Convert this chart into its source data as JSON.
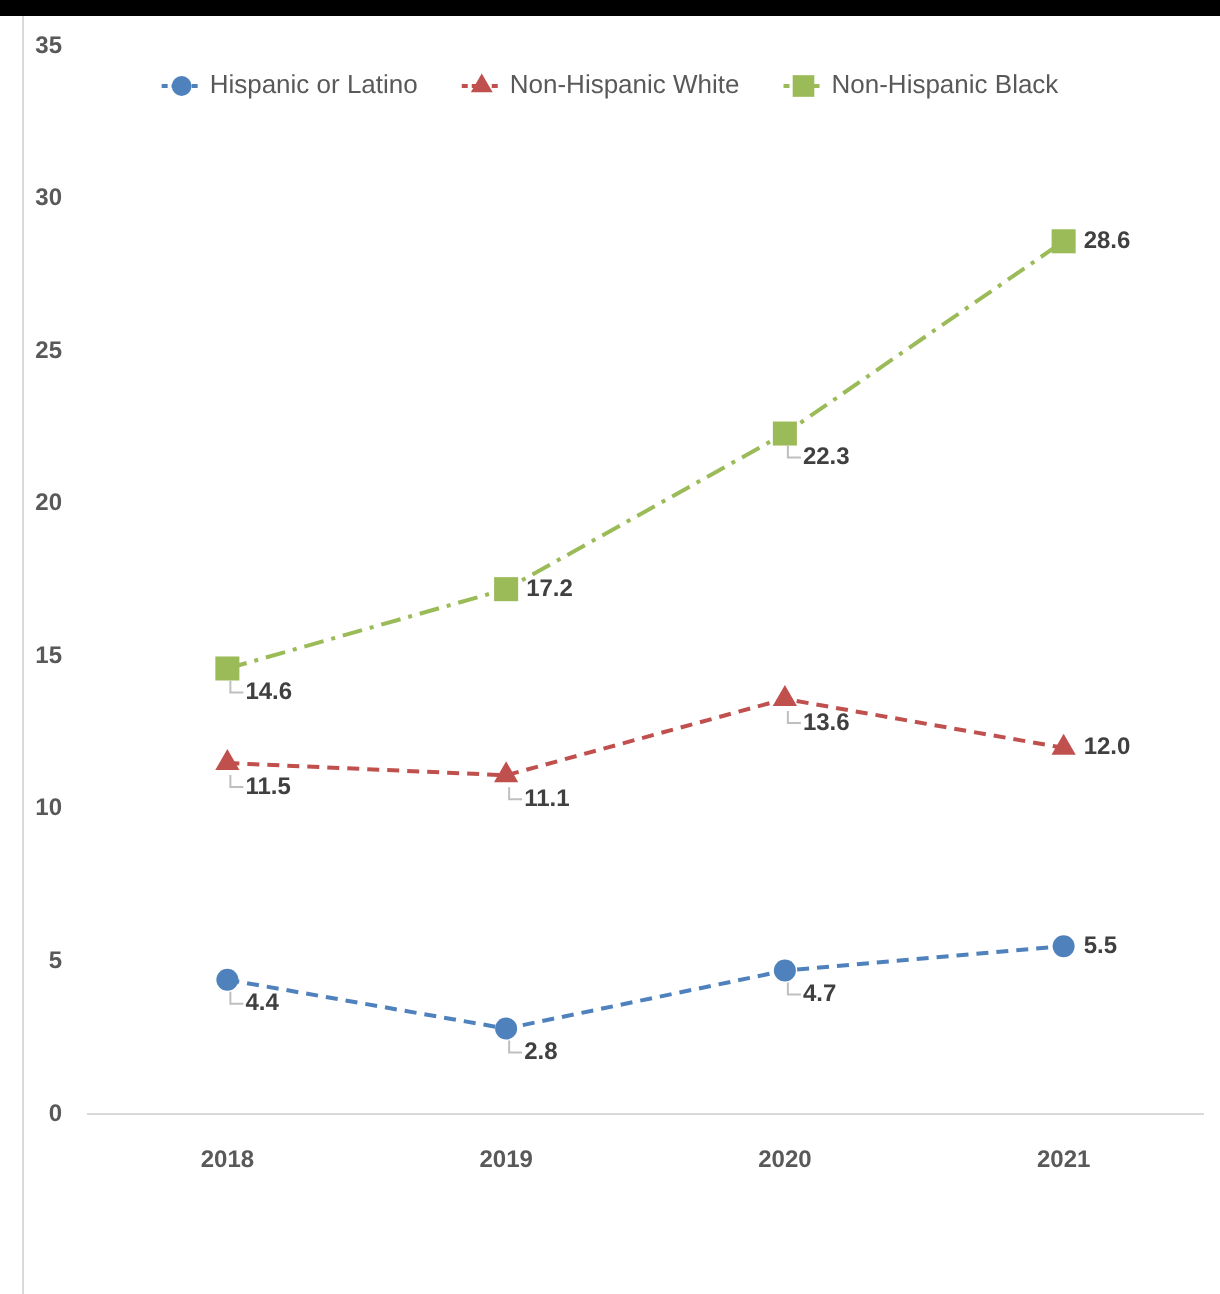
{
  "chart_data": {
    "type": "line",
    "categories": [
      "2018",
      "2019",
      "2020",
      "2021"
    ],
    "series": [
      {
        "name": "Hispanic or Latino",
        "color": "#4f81bd",
        "values": [
          4.4,
          2.8,
          4.7,
          5.5
        ],
        "value_labels": [
          "4.4",
          "2.8",
          "4.7",
          "5.5"
        ],
        "marker": "circle",
        "line_style": "dashed"
      },
      {
        "name": "Non-Hispanic White",
        "color": "#c0504d",
        "values": [
          11.5,
          11.1,
          13.6,
          12.0
        ],
        "value_labels": [
          "11.5",
          "11.1",
          "13.6",
          "12.0"
        ],
        "marker": "triangle",
        "line_style": "dashed"
      },
      {
        "name": "Non-Hispanic Black",
        "color": "#9bbb59",
        "values": [
          14.6,
          17.2,
          22.3,
          28.6
        ],
        "value_labels": [
          "14.6",
          "17.2",
          "22.3",
          "28.6"
        ],
        "marker": "square",
        "line_style": "dashdot"
      }
    ],
    "ylim": [
      0,
      35
    ],
    "yticks": [
      0,
      5,
      10,
      15,
      20,
      25,
      30,
      35
    ],
    "legend": "top"
  }
}
